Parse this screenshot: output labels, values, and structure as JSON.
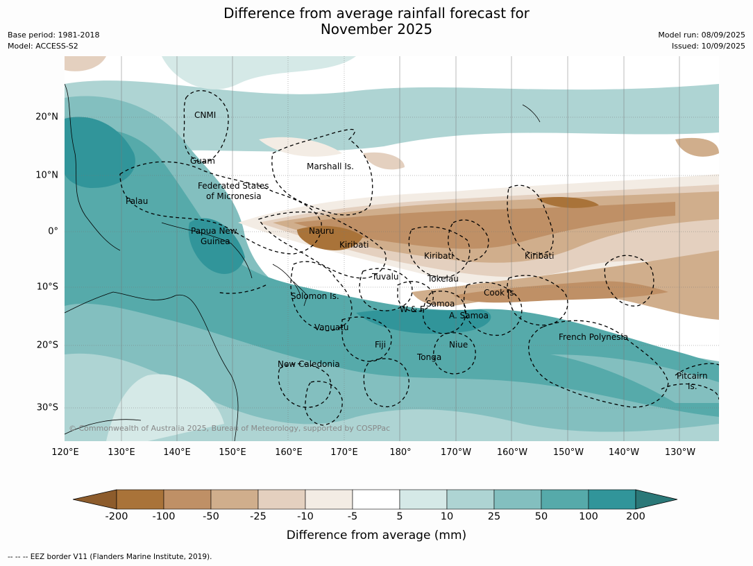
{
  "title_line1": "Difference from average rainfall forecast for",
  "title_line2": "November 2025",
  "meta_left": {
    "base_period": "Base period: 1981-2018",
    "model": "Model: ACCESS-S2"
  },
  "meta_right": {
    "model_run": "Model run: 08/09/2025",
    "issued": "Issued: 10/09/2025"
  },
  "copyright": "© Commonwealth of Australia 2025, Bureau of Meteorology, supported by COSPPac",
  "lon_labels": [
    "120°E",
    "130°E",
    "140°E",
    "150°E",
    "160°E",
    "170°E",
    "180°",
    "170°W",
    "160°W",
    "150°W",
    "140°W",
    "130°W"
  ],
  "lat_labels": [
    "20°N",
    "10°N",
    "0°",
    "10°S",
    "20°S",
    "30°S"
  ],
  "regions": {
    "cnmi": "CNMI",
    "guam": "Guam",
    "marshall": "Marshall Is.",
    "fsm1": "Federated States",
    "fsm2": "of Micronesia",
    "palau": "Palau",
    "png1": "Papua New",
    "png2": "Guinea",
    "nauru": "Nauru",
    "kiribati_w": "Kiribati",
    "kiribati_c": "Kiribati",
    "kiribati_e": "Kiribati",
    "tuvalu": "Tuvalu",
    "tokelau": "Tokelau",
    "cook": "Cook Is.",
    "solomon": "Solomon Is.",
    "wf": "W & F",
    "samoa": "Samoa",
    "asamoa": "A. Samoa",
    "vanuatu": "Vanuatu",
    "fiji": "Fiji",
    "niue": "Niue",
    "tonga": "Tonga",
    "frpoly": "French Polynesia",
    "newcal": "New Caledonia",
    "pitcairn1": "Pitcairn",
    "pitcairn2": "Is."
  },
  "colorbar": {
    "labels": [
      "-200",
      "-100",
      "-50",
      "-25",
      "-10",
      "-5",
      "5",
      "10",
      "25",
      "50",
      "100",
      "200"
    ],
    "colors": [
      "#a97339",
      "#bf9066",
      "#d0ae8c",
      "#e4d0bf",
      "#f3ece4",
      "#ffffff",
      "#d5e9e7",
      "#aed4d3",
      "#83bfbf",
      "#56aaaa",
      "#31959a"
    ],
    "low_extend_color": "#8d5c2c",
    "high_extend_color": "#2b7878",
    "title": "Difference from average (mm)"
  },
  "footnote": "--  --  -- EEZ border V11 (Flanders Marine Institute, 2019)."
}
